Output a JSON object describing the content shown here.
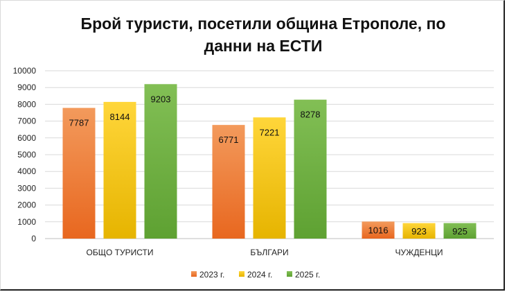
{
  "chart_data": {
    "type": "bar",
    "title_line1": "Брой туристи, посетили община Етрополе, по",
    "title_line2": "данни на ЕСТИ",
    "categories": [
      "ОБЩО ТУРИСТИ",
      "БЪЛГАРИ",
      "ЧУЖДЕНЦИ"
    ],
    "series": [
      {
        "name": "2023 г.",
        "values": [
          7787,
          6771,
          1016
        ],
        "color_top": "#f39a5c",
        "color_bottom": "#e8671f"
      },
      {
        "name": "2024 г.",
        "values": [
          8144,
          7221,
          923
        ],
        "color_top": "#ffd63a",
        "color_bottom": "#e6b400"
      },
      {
        "name": "2025 г.",
        "values": [
          9203,
          8278,
          925
        ],
        "color_top": "#82bf55",
        "color_bottom": "#5ea132"
      }
    ],
    "ylim": [
      0,
      10000
    ],
    "yticks": [
      "0",
      "1000",
      "2000",
      "3000",
      "4000",
      "5000",
      "6000",
      "7000",
      "8000",
      "9000",
      "10000"
    ],
    "grid": true,
    "legend_position": "bottom"
  }
}
